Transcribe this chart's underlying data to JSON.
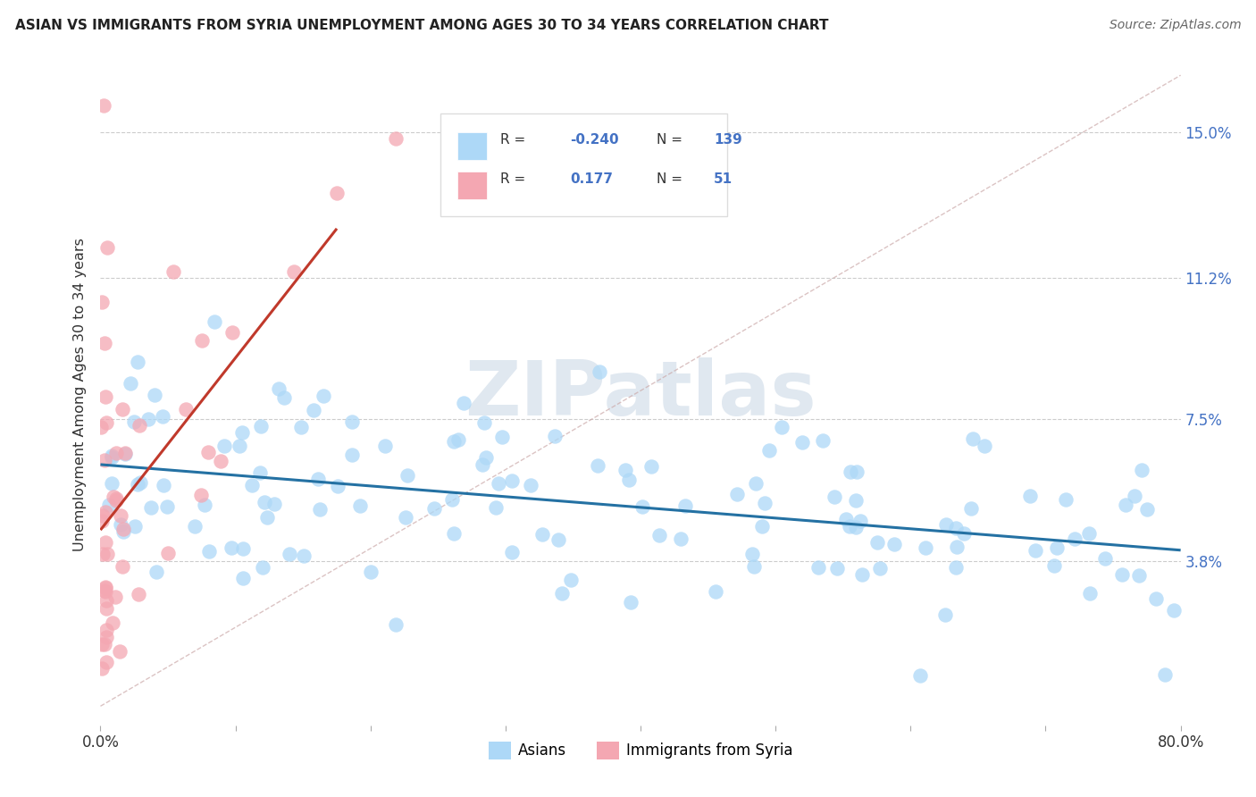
{
  "title": "ASIAN VS IMMIGRANTS FROM SYRIA UNEMPLOYMENT AMONG AGES 30 TO 34 YEARS CORRELATION CHART",
  "source": "Source: ZipAtlas.com",
  "ylabel": "Unemployment Among Ages 30 to 34 years",
  "ytick_values": [
    0.038,
    0.075,
    0.112,
    0.15
  ],
  "ytick_labels": [
    "3.8%",
    "7.5%",
    "11.2%",
    "15.0%"
  ],
  "xlim": [
    0.0,
    80.0
  ],
  "ylim": [
    -0.005,
    0.168
  ],
  "legend_asian": "Asians",
  "legend_syria": "Immigrants from Syria",
  "R_asian": -0.24,
  "N_asian": 139,
  "R_syria": 0.177,
  "N_syria": 51,
  "color_asian": "#ADD8F7",
  "color_syria": "#F4A7B2",
  "color_asian_line": "#2471A3",
  "color_syria_line": "#C0392B",
  "watermark": "ZIPatlas"
}
